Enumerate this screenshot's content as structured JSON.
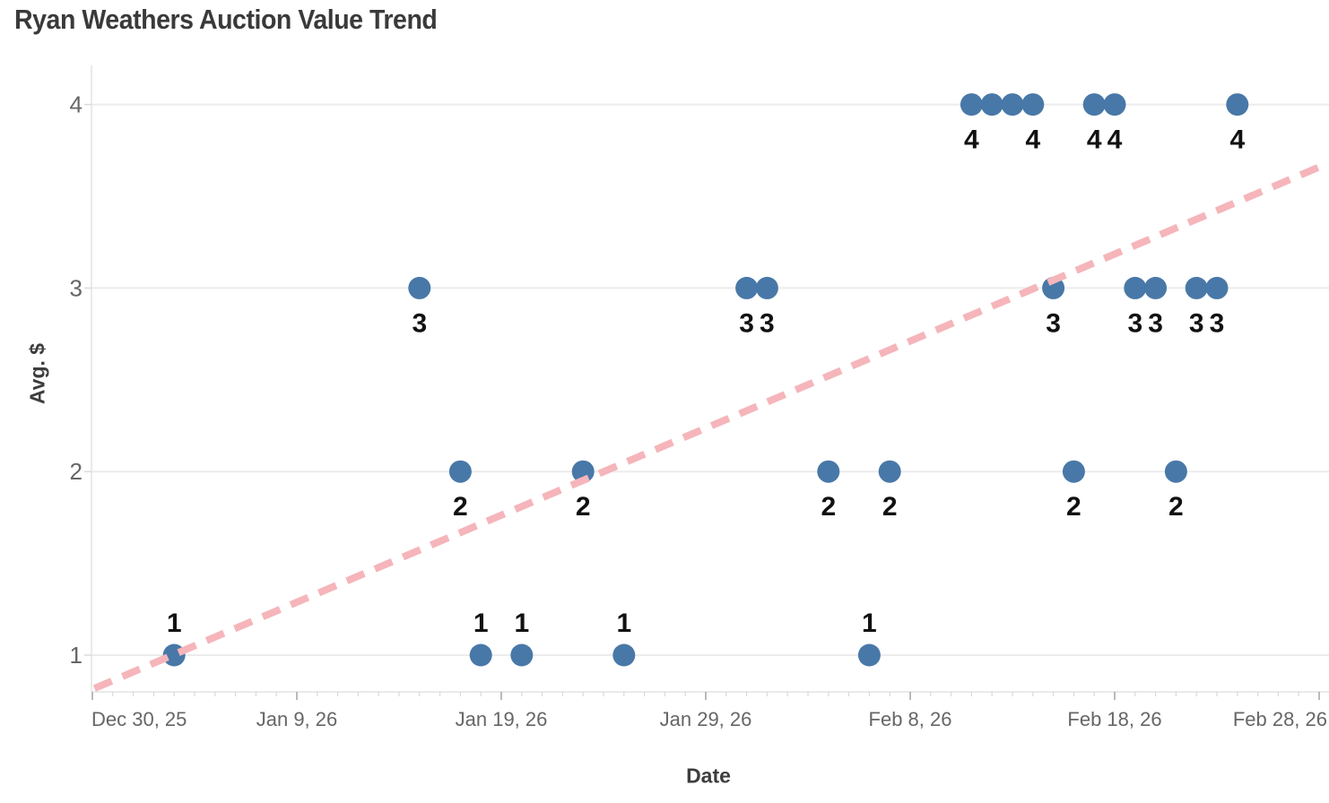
{
  "chart_data": {
    "type": "scatter",
    "title": "Ryan Weathers Auction Value Trend",
    "xlabel": "Date",
    "ylabel": "Avg. $",
    "x_axis": {
      "start_date": "Dec 30, 25",
      "end_date": "Feb 28, 26",
      "minor_tick_every_days": 1,
      "major_tick_every_days": 10,
      "tick_labels": [
        {
          "label": "Dec 30, 25",
          "day": 0
        },
        {
          "label": "Jan 9, 26",
          "day": 10
        },
        {
          "label": "Jan 19, 26",
          "day": 20
        },
        {
          "label": "Jan 29, 26",
          "day": 30
        },
        {
          "label": "Feb 8, 26",
          "day": 40
        },
        {
          "label": "Feb 18, 26",
          "day": 50
        },
        {
          "label": "Feb 28, 26",
          "day": 60
        }
      ]
    },
    "y_axis": {
      "ticks": [
        1,
        2,
        3,
        4
      ],
      "range": [
        0.8,
        4.21
      ],
      "grid": true
    },
    "points": [
      {
        "date": "Jan 3, 26",
        "day": 4,
        "value": 1,
        "label": "1",
        "label_side": "above",
        "label_visible": true
      },
      {
        "date": "Jan 15, 26",
        "day": 16,
        "value": 3,
        "label": "3",
        "label_side": "below",
        "label_visible": true
      },
      {
        "date": "Jan 17, 26",
        "day": 18,
        "value": 2,
        "label": "2",
        "label_side": "below",
        "label_visible": true
      },
      {
        "date": "Jan 18, 26",
        "day": 19,
        "value": 1,
        "label": "1",
        "label_side": "above",
        "label_visible": true
      },
      {
        "date": "Jan 20, 26",
        "day": 21,
        "value": 1,
        "label": "1",
        "label_side": "above",
        "label_visible": true
      },
      {
        "date": "Jan 23, 26",
        "day": 24,
        "value": 2,
        "label": "2",
        "label_side": "below",
        "label_visible": true
      },
      {
        "date": "Jan 25, 26",
        "day": 26,
        "value": 1,
        "label": "1",
        "label_side": "above",
        "label_visible": true
      },
      {
        "date": "Jan 31, 26",
        "day": 32,
        "value": 3,
        "label": "3",
        "label_side": "below",
        "label_visible": true
      },
      {
        "date": "Feb 1, 26",
        "day": 33,
        "value": 3,
        "label": "3",
        "label_side": "below",
        "label_visible": true
      },
      {
        "date": "Feb 4, 26",
        "day": 36,
        "value": 2,
        "label": "2",
        "label_side": "below",
        "label_visible": true
      },
      {
        "date": "Feb 6, 26",
        "day": 38,
        "value": 1,
        "label": "1",
        "label_side": "above",
        "label_visible": true
      },
      {
        "date": "Feb 7, 26",
        "day": 39,
        "value": 2,
        "label": "2",
        "label_side": "below",
        "label_visible": true
      },
      {
        "date": "Feb 11, 26",
        "day": 43,
        "value": 4,
        "label": "4",
        "label_side": "below",
        "label_visible": true
      },
      {
        "date": "Feb 12, 26",
        "day": 44,
        "value": 4,
        "label": "4",
        "label_side": "below",
        "label_visible": false
      },
      {
        "date": "Feb 13, 26",
        "day": 45,
        "value": 4,
        "label": "4",
        "label_side": "below",
        "label_visible": false
      },
      {
        "date": "Feb 14, 26",
        "day": 46,
        "value": 4,
        "label": "4",
        "label_side": "below",
        "label_visible": true
      },
      {
        "date": "Feb 15, 26",
        "day": 47,
        "value": 3,
        "label": "3",
        "label_side": "below",
        "label_visible": true
      },
      {
        "date": "Feb 16, 26",
        "day": 48,
        "value": 2,
        "label": "2",
        "label_side": "below",
        "label_visible": true
      },
      {
        "date": "Feb 17, 26",
        "day": 49,
        "value": 4,
        "label": "4",
        "label_side": "below",
        "label_visible": true
      },
      {
        "date": "Feb 18, 26",
        "day": 50,
        "value": 4,
        "label": "4",
        "label_side": "below",
        "label_visible": true
      },
      {
        "date": "Feb 19, 26",
        "day": 51,
        "value": 3,
        "label": "3",
        "label_side": "below",
        "label_visible": true
      },
      {
        "date": "Feb 20, 26",
        "day": 52,
        "value": 3,
        "label": "3",
        "label_side": "below",
        "label_visible": true
      },
      {
        "date": "Feb 21, 26",
        "day": 53,
        "value": 2,
        "label": "2",
        "label_side": "below",
        "label_visible": true
      },
      {
        "date": "Feb 22, 26",
        "day": 54,
        "value": 3,
        "label": "3",
        "label_side": "below",
        "label_visible": true
      },
      {
        "date": "Feb 23, 26",
        "day": 55,
        "value": 3,
        "label": "3",
        "label_side": "below",
        "label_visible": true
      },
      {
        "date": "Feb 24, 26",
        "day": 56,
        "value": 4,
        "label": "4",
        "label_side": "below",
        "label_visible": true
      }
    ],
    "trend_line": {
      "style": "dashed",
      "intercept_value_at_day0": 0.814,
      "slope_value_per_day": 0.04742,
      "from_day": 0.1,
      "to_day": 60.1
    },
    "colors": {
      "point": "#4878a8",
      "trend": "#f5b5ba",
      "grid": "#ececec",
      "axis_line": "#e4e4e4",
      "tick_minor": "#d9d9d9",
      "tick_major": "#a9a9a9",
      "tick_label": "#666666",
      "title": "#3a3a3a",
      "axis_title": "#3d3d3d",
      "data_label": "#111111"
    }
  }
}
